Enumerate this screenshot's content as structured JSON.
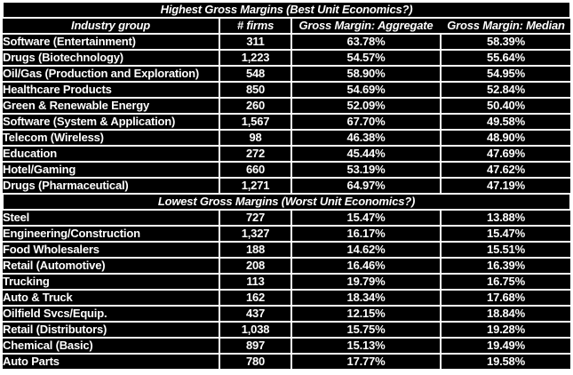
{
  "colors": {
    "cell_background": "#000000",
    "cell_text": "#ffffff",
    "title_background": "#ffffff",
    "title_text": "#000000",
    "grid_line": "#ffffff"
  },
  "chart_data": {
    "type": "table",
    "sections": [
      {
        "title": "Highest Gross Margins (Best Unit Economics?)",
        "columns": [
          "Industry group",
          "# firms",
          "Gross Margin: Aggregate",
          "Gross Margin: Median"
        ],
        "rows": [
          {
            "industry": "Software (Entertainment)",
            "firms": "311",
            "aggregate": "63.78%",
            "median": "58.39%"
          },
          {
            "industry": "Drugs (Biotechnology)",
            "firms": "1,223",
            "aggregate": "54.57%",
            "median": "55.64%"
          },
          {
            "industry": "Oil/Gas (Production and Exploration)",
            "firms": "548",
            "aggregate": "58.90%",
            "median": "54.95%"
          },
          {
            "industry": "Healthcare Products",
            "firms": "850",
            "aggregate": "54.69%",
            "median": "52.84%"
          },
          {
            "industry": "Green & Renewable Energy",
            "firms": "260",
            "aggregate": "52.09%",
            "median": "50.40%"
          },
          {
            "industry": "Software (System & Application)",
            "firms": "1,567",
            "aggregate": "67.70%",
            "median": "49.58%"
          },
          {
            "industry": "Telecom (Wireless)",
            "firms": "98",
            "aggregate": "46.38%",
            "median": "48.90%"
          },
          {
            "industry": "Education",
            "firms": "272",
            "aggregate": "45.44%",
            "median": "47.69%"
          },
          {
            "industry": "Hotel/Gaming",
            "firms": "660",
            "aggregate": "53.19%",
            "median": "47.62%"
          },
          {
            "industry": "Drugs (Pharmaceutical)",
            "firms": "1,271",
            "aggregate": "64.97%",
            "median": "47.19%"
          }
        ]
      },
      {
        "title": "Lowest Gross Margins (Worst Unit Economics?)",
        "columns": null,
        "rows": [
          {
            "industry": "Steel",
            "firms": "727",
            "aggregate": "15.47%",
            "median": "13.88%"
          },
          {
            "industry": "Engineering/Construction",
            "firms": "1,327",
            "aggregate": "16.17%",
            "median": "15.47%"
          },
          {
            "industry": "Food Wholesalers",
            "firms": "188",
            "aggregate": "14.62%",
            "median": "15.51%"
          },
          {
            "industry": "Retail (Automotive)",
            "firms": "208",
            "aggregate": "16.46%",
            "median": "16.39%"
          },
          {
            "industry": "Trucking",
            "firms": "113",
            "aggregate": "19.79%",
            "median": "16.75%"
          },
          {
            "industry": "Auto & Truck",
            "firms": "162",
            "aggregate": "18.34%",
            "median": "17.68%"
          },
          {
            "industry": "Oilfield Svcs/Equip.",
            "firms": "437",
            "aggregate": "12.15%",
            "median": "18.84%"
          },
          {
            "industry": "Retail (Distributors)",
            "firms": "1,038",
            "aggregate": "15.75%",
            "median": "19.28%"
          },
          {
            "industry": "Chemical (Basic)",
            "firms": "897",
            "aggregate": "15.13%",
            "median": "19.49%"
          },
          {
            "industry": "Auto Parts",
            "firms": "780",
            "aggregate": "17.77%",
            "median": "19.58%"
          }
        ]
      }
    ]
  }
}
